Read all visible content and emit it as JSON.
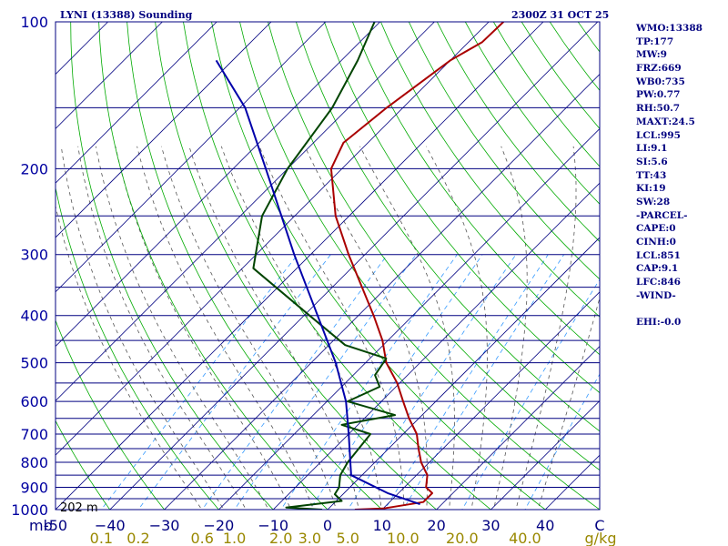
{
  "header": {
    "title": "LYNI (13388) Sounding",
    "timestamp": "2300Z 31 OCT 25"
  },
  "indices": [
    "WMO:13388",
    "TP:177",
    "MW:9",
    "FRZ:669",
    "WB0:735",
    "PW:0.77",
    "RH:50.7",
    "MAXT:24.5",
    "LCL:995",
    "LI:9.1",
    "SI:5.6",
    "TT:43",
    "KI:19",
    "SW:28",
    "-PARCEL-",
    "CAPE:0",
    "CINH:0",
    "LCL:851",
    "CAP:9.1",
    "LFC:846",
    "-WIND-",
    "",
    "EHI:-0.0"
  ],
  "colors": {
    "isobar": "#000080",
    "isotherm": "#000080",
    "dry_adiabat": "#00aa00",
    "moist_adiabat": "#555555",
    "mixing_ratio": "#3399ff",
    "temperature": "#aa0000",
    "dewpoint": "#004400",
    "parcel": "#0000aa",
    "pressure_label": "#0000a0",
    "temp_label": "#000080",
    "mixing_label": "#998800",
    "background": "#ffffff"
  },
  "chart_data": {
    "type": "line",
    "title": "LYNI (13388) Sounding",
    "xlabel": "C",
    "ylabel": "mb",
    "x_units": "C",
    "y_units": "mb",
    "xlim": [
      -50,
      50
    ],
    "ylim": [
      1000,
      100
    ],
    "y_scale": "log",
    "skew": "45-degree isotherms",
    "pressure_ticks": [
      100,
      200,
      300,
      400,
      500,
      600,
      700,
      800,
      900,
      1000
    ],
    "pressure_tick_labels": [
      "100",
      "200",
      "300",
      "400",
      "500",
      "600",
      "700",
      "800",
      "900",
      "1000"
    ],
    "temperature_ticks": [
      -50,
      -40,
      -30,
      -20,
      -10,
      0,
      10,
      20,
      30,
      40
    ],
    "temperature_tick_labels": [
      "-50",
      "−40",
      "−30",
      "−20",
      "−10",
      "0",
      "10",
      "20",
      "30",
      "40"
    ],
    "axis_unit_left": "mb",
    "axis_unit_right": "C",
    "mixing_ratio_labels": [
      "0.1",
      "0.2",
      "0.6",
      "1.0",
      "2.0",
      "3.0",
      "5.0",
      "10.0",
      "20.0",
      "40.0"
    ],
    "mixing_ratio_unit": "g/kg",
    "surface_height_label": "202 m",
    "isobars": [
      100,
      150,
      200,
      250,
      300,
      350,
      400,
      450,
      500,
      550,
      600,
      650,
      700,
      750,
      800,
      850,
      900,
      950,
      1000
    ],
    "series": [
      {
        "name": "Temperature",
        "points": [
          {
            "p": 1000,
            "t": 5.0
          },
          {
            "p": 995,
            "t": 10.0
          },
          {
            "p": 965,
            "t": 16.2
          },
          {
            "p": 925,
            "t": 16.2
          },
          {
            "p": 900,
            "t": 14.0
          },
          {
            "p": 850,
            "t": 12.0
          },
          {
            "p": 800,
            "t": 8.5
          },
          {
            "p": 750,
            "t": 5.5
          },
          {
            "p": 700,
            "t": 2.5
          },
          {
            "p": 650,
            "t": -1.8
          },
          {
            "p": 600,
            "t": -6.0
          },
          {
            "p": 550,
            "t": -10.5
          },
          {
            "p": 500,
            "t": -16.2
          },
          {
            "p": 450,
            "t": -21.0
          },
          {
            "p": 400,
            "t": -27.2
          },
          {
            "p": 300,
            "t": -43.0
          },
          {
            "p": 250,
            "t": -52.5
          },
          {
            "p": 200,
            "t": -62.0
          },
          {
            "p": 177,
            "t": -64.5
          },
          {
            "p": 150,
            "t": -63.0
          },
          {
            "p": 120,
            "t": -60.0
          },
          {
            "p": 110,
            "t": -57.5
          },
          {
            "p": 100,
            "t": -57.3
          }
        ]
      },
      {
        "name": "Dewpoint",
        "points": [
          {
            "p": 1000,
            "t": -1.0
          },
          {
            "p": 990,
            "t": -8.0
          },
          {
            "p": 960,
            "t": 1.0
          },
          {
            "p": 930,
            "t": -1.5
          },
          {
            "p": 900,
            "t": -2.0
          },
          {
            "p": 850,
            "t": -4.0
          },
          {
            "p": 800,
            "t": -5.0
          },
          {
            "p": 700,
            "t": -6.0
          },
          {
            "p": 670,
            "t": -13.0
          },
          {
            "p": 640,
            "t": -5.0
          },
          {
            "p": 600,
            "t": -16.2
          },
          {
            "p": 560,
            "t": -13.0
          },
          {
            "p": 530,
            "t": -16.0
          },
          {
            "p": 490,
            "t": -17.0
          },
          {
            "p": 460,
            "t": -27.0
          },
          {
            "p": 400,
            "t": -39.0
          },
          {
            "p": 320,
            "t": -58.0
          },
          {
            "p": 250,
            "t": -66.0
          },
          {
            "p": 200,
            "t": -70.0
          },
          {
            "p": 150,
            "t": -73.0
          },
          {
            "p": 120,
            "t": -77.0
          },
          {
            "p": 100,
            "t": -81.0
          }
        ]
      },
      {
        "name": "Parcel",
        "points": [
          {
            "p": 975,
            "t": 16.0
          },
          {
            "p": 925,
            "t": 8.0
          },
          {
            "p": 850,
            "t": -2.0
          },
          {
            "p": 800,
            "t": -4.5
          },
          {
            "p": 700,
            "t": -10.0
          },
          {
            "p": 600,
            "t": -16.5
          },
          {
            "p": 500,
            "t": -25.5
          },
          {
            "p": 400,
            "t": -37.5
          },
          {
            "p": 300,
            "t": -53.0
          },
          {
            "p": 200,
            "t": -74.0
          },
          {
            "p": 150,
            "t": -89.0
          },
          {
            "p": 120,
            "t": -103.0
          }
        ]
      }
    ]
  }
}
